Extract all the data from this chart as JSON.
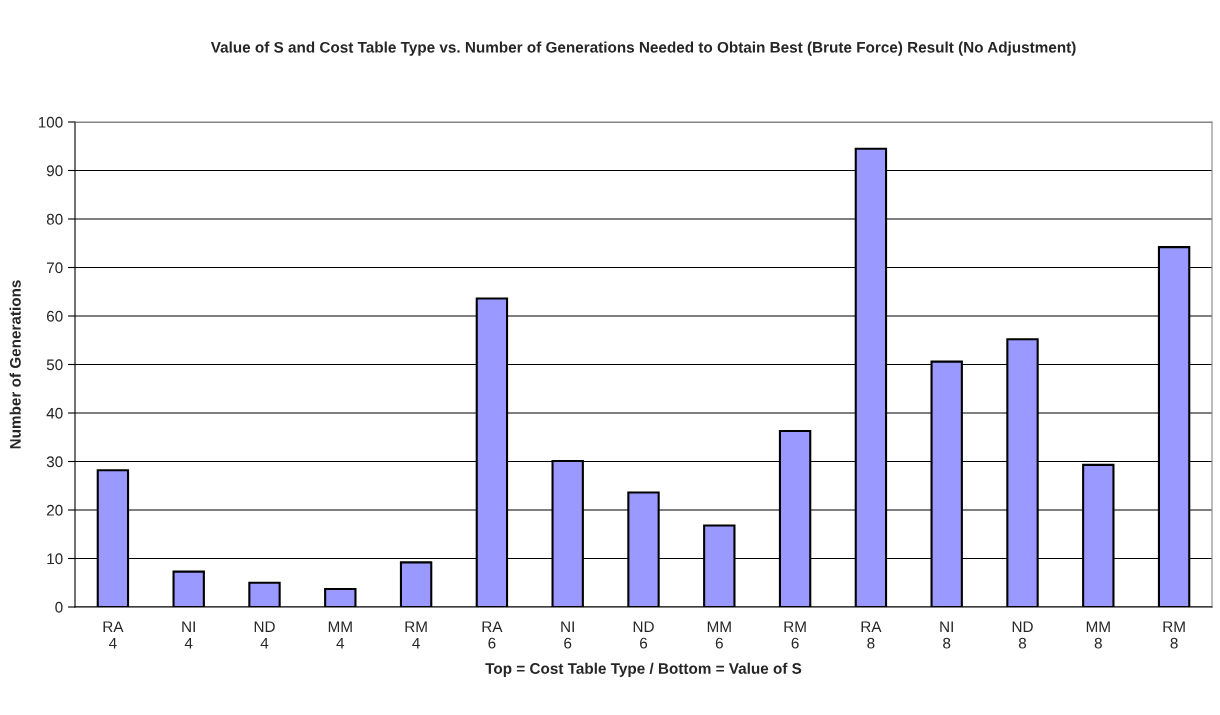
{
  "chart_data": {
    "type": "bar",
    "title": "Value of S and Cost Table Type vs. Number of Generations Needed to Obtain Best (Brute Force) Result (No Adjustment)",
    "xlabel": "Top = Cost Table Type / Bottom = Value of S",
    "ylabel": "Number of Generations",
    "categories": [
      "RA\n4",
      "NI\n4",
      "ND\n4",
      "MM\n4",
      "RM\n4",
      "RA\n6",
      "NI\n6",
      "ND\n6",
      "MM\n6",
      "RM\n6",
      "RA\n8",
      "NI\n8",
      "ND\n8",
      "MM\n8",
      "RM\n8"
    ],
    "values": [
      28.2,
      7.3,
      5.0,
      3.7,
      9.2,
      63.6,
      30.1,
      23.6,
      16.8,
      36.3,
      94.5,
      50.6,
      55.2,
      29.3,
      74.2
    ],
    "color": "#9999ff",
    "ylim": [
      0,
      100
    ],
    "yticks": [
      0,
      10,
      20,
      30,
      40,
      50,
      60,
      70,
      80,
      90,
      100
    ],
    "grid": "y",
    "legend": false
  }
}
